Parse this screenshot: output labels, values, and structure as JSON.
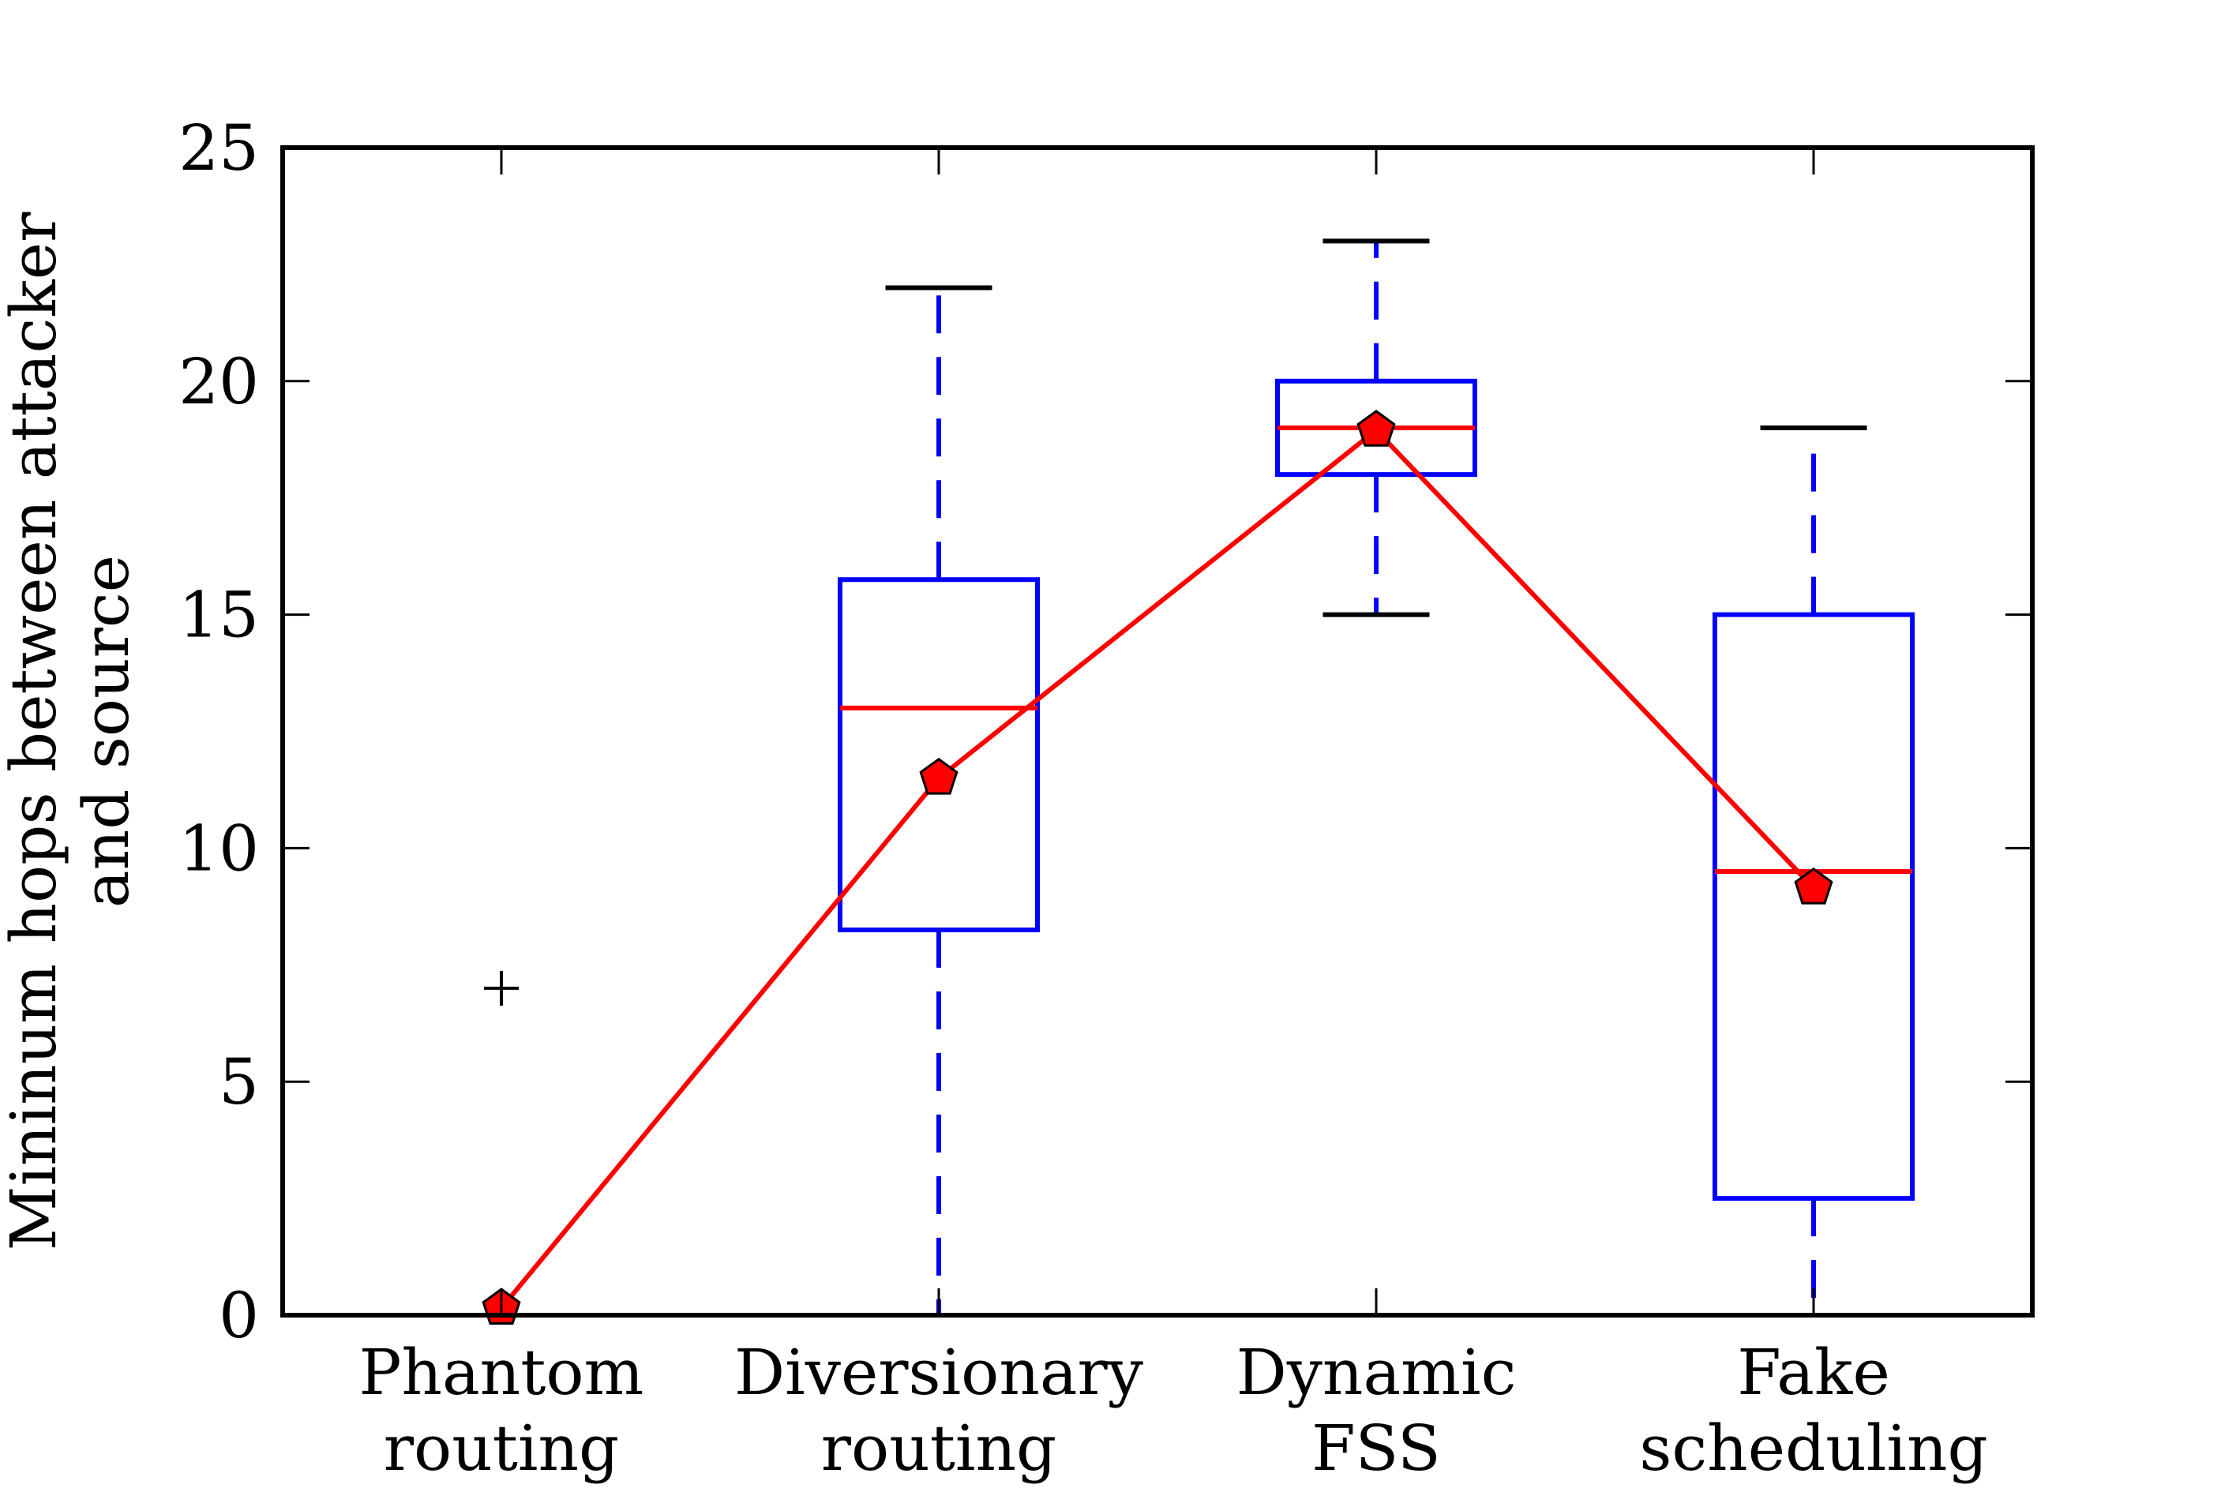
{
  "chart_data": {
    "type": "box",
    "title": "",
    "xlabel": "",
    "ylabel_lines": [
      "Mininum hops between attacker",
      "and source"
    ],
    "ylim": [
      0,
      25
    ],
    "yticks": [
      0,
      5,
      10,
      15,
      20,
      25
    ],
    "categories": [
      {
        "lines": [
          "Phantom",
          "routing"
        ]
      },
      {
        "lines": [
          "Diversionary",
          "routing"
        ]
      },
      {
        "lines": [
          "Dynamic",
          "FSS"
        ]
      },
      {
        "lines": [
          "Fake",
          "scheduling"
        ]
      }
    ],
    "boxes": [
      {
        "whisker_low": 0,
        "q1": 0,
        "median": 0,
        "q3": 0,
        "whisker_high": 0,
        "outliers": [
          7
        ]
      },
      {
        "whisker_low": 0,
        "q1": 8.25,
        "median": 13,
        "q3": 15.75,
        "whisker_high": 22,
        "outliers": []
      },
      {
        "whisker_low": 15,
        "q1": 18,
        "median": 19,
        "q3": 20,
        "whisker_high": 23,
        "outliers": []
      },
      {
        "whisker_low": 0,
        "q1": 2.5,
        "median": 9.5,
        "q3": 15,
        "whisker_high": 19,
        "outliers": []
      }
    ],
    "mean_line": {
      "values": [
        0.15,
        11.5,
        18.95,
        9.15
      ],
      "color": "#ff0000",
      "marker": "pentagon",
      "marker_fill": "#ff0000"
    },
    "colors": {
      "box": "#0000ff",
      "median": "#ff0000",
      "cap": "#000000",
      "outlier": "#000000",
      "axes": "#000000"
    },
    "grid": false,
    "legend": "none"
  }
}
